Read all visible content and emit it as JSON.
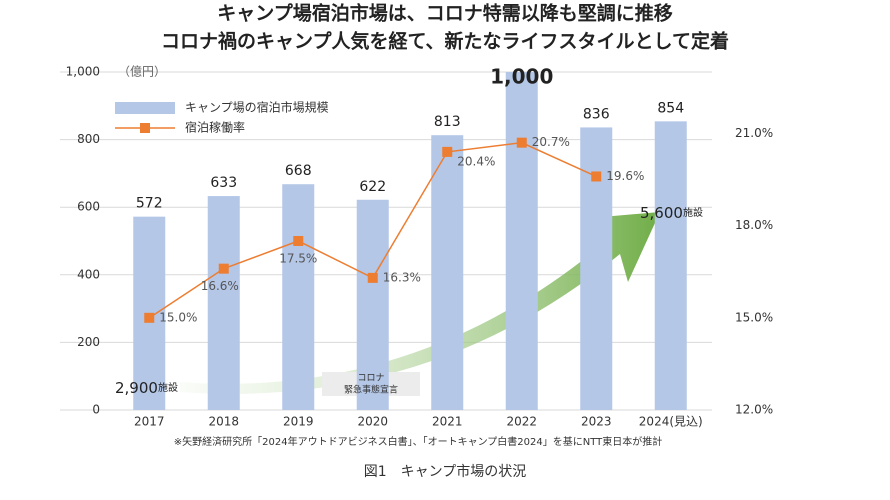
{
  "chart_data": {
    "type": "bar_line",
    "title": [
      "キャンプ場宿泊市場は、コロナ特需以降も堅調に推移",
      "コロナ禍のキャンプ人気を経て、新たなライフスタイルとして定着"
    ],
    "y_unit": "（億円）",
    "categories": [
      "2017",
      "2018",
      "2019",
      "2020",
      "2021",
      "2022",
      "2023",
      "2024(見込)"
    ],
    "series": [
      {
        "name": "キャンプ場の宿泊市場規模",
        "color": "#b4c7e7",
        "kind": "bar",
        "values": [
          572,
          633,
          668,
          622,
          813,
          1000,
          836,
          854
        ],
        "value_labels": [
          "572",
          "633",
          "668",
          "622",
          "813",
          "1,000",
          "836",
          "854"
        ]
      },
      {
        "name": "宿泊稼働率",
        "color": "#ed7d31",
        "kind": "line",
        "axis": "y2",
        "values": [
          15.0,
          16.6,
          17.5,
          16.3,
          20.4,
          20.7,
          19.6,
          null
        ],
        "value_labels": [
          "15.0%",
          "16.6%",
          "17.5%",
          "16.3%",
          "20.4%",
          "20.7%",
          "19.6%",
          null
        ]
      }
    ],
    "ylim": [
      0,
      1000
    ],
    "yticks": [
      0,
      200,
      400,
      600,
      800,
      {
        "value": 1000,
        "label": "1,000"
      }
    ],
    "y2lim": [
      12,
      23
    ],
    "y2ticks": [
      {
        "value": 12,
        "label": "12.0%"
      },
      {
        "value": 15,
        "label": "15.0%"
      },
      {
        "value": 18,
        "label": "18.0%"
      },
      {
        "value": 21,
        "label": "21.0%"
      }
    ],
    "grid": true,
    "annotations": [
      {
        "text": "2,900",
        "unit": "施設"
      },
      {
        "text": "5,600",
        "unit": "施設"
      },
      {
        "text": [
          "コロナ",
          "緊急事態宣言"
        ]
      }
    ],
    "source": "※矢野経済研究所「2024年アウトドアビジネス白書」、「オートキャンプ白書2024」を基にNTT東日本が推計",
    "caption": "図1　キャンプ市場の状況"
  }
}
